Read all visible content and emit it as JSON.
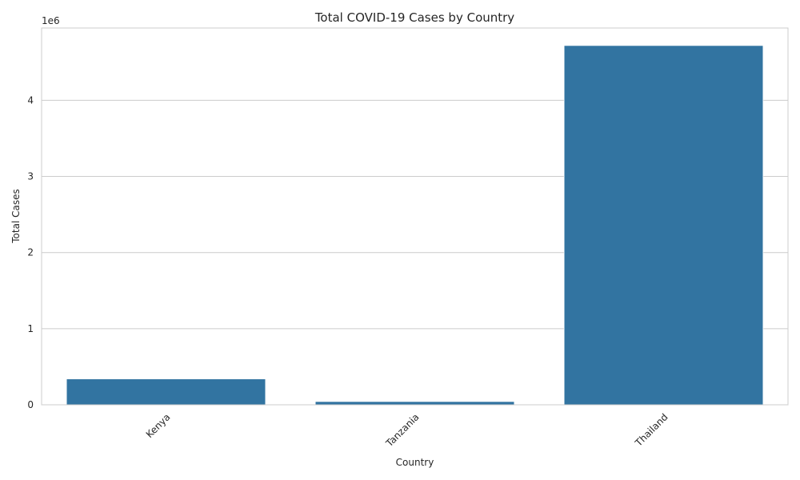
{
  "chart_data": {
    "type": "bar",
    "title": "Total COVID-19 Cases by Country",
    "xlabel": "Country",
    "ylabel": "Total Cases",
    "offset_label": "1e6",
    "categories": [
      "Kenya",
      "Tanzania",
      "Thailand"
    ],
    "values": [
      340000,
      43000,
      4720000
    ],
    "ylim": [
      0,
      4950000
    ],
    "yticks": [
      0,
      1000000,
      2000000,
      3000000,
      4000000
    ],
    "ytick_labels": [
      "0",
      "1",
      "2",
      "3",
      "4"
    ],
    "grid": true,
    "bar_color": "#3274a1",
    "legend": null
  }
}
